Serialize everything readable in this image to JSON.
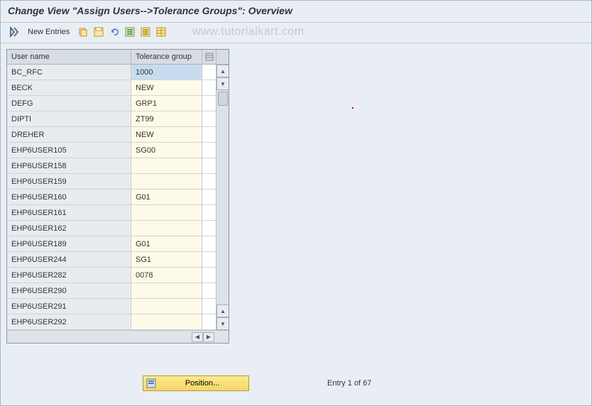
{
  "title": "Change View \"Assign Users-->Tolerance Groups\": Overview",
  "toolbar": {
    "new_entries": "New Entries"
  },
  "watermark": "www.tutorialkart.com",
  "table": {
    "columns": {
      "user": "User name",
      "group": "Tolerance group"
    },
    "rows": [
      {
        "user": "BC_RFC",
        "group": "1000",
        "selected": true
      },
      {
        "user": "BECK",
        "group": "NEW"
      },
      {
        "user": "DEFG",
        "group": "GRP1"
      },
      {
        "user": "DIPTI",
        "group": "ZT99"
      },
      {
        "user": "DREHER",
        "group": "NEW"
      },
      {
        "user": "EHP6USER105",
        "group": "SG00"
      },
      {
        "user": "EHP6USER158",
        "group": ""
      },
      {
        "user": "EHP6USER159",
        "group": ""
      },
      {
        "user": "EHP6USER160",
        "group": "G01"
      },
      {
        "user": "EHP6USER161",
        "group": ""
      },
      {
        "user": "EHP6USER162",
        "group": ""
      },
      {
        "user": "EHP6USER189",
        "group": "G01"
      },
      {
        "user": "EHP6USER244",
        "group": "SG1"
      },
      {
        "user": "EHP6USER282",
        "group": "0078"
      },
      {
        "user": "EHP6USER290",
        "group": ""
      },
      {
        "user": "EHP6USER291",
        "group": ""
      },
      {
        "user": "EHP6USER292",
        "group": ""
      }
    ]
  },
  "footer": {
    "position_label": "Position...",
    "entry_text": "Entry 1 of 67"
  },
  "colors": {
    "background": "#e8eef4",
    "header_bg": "#d8dde4",
    "user_cell_bg": "#e8ecf0",
    "group_cell_bg": "#fdfae8",
    "selected_bg": "#c8dcf0",
    "border": "#a8b8c8",
    "position_btn_bg": "#f5d767"
  },
  "icons": {
    "toggle": "toggle-icon",
    "copy": "copy-icon",
    "save": "save-icon",
    "undo": "undo-icon",
    "select_all": "select-all-icon",
    "delete": "delete-icon",
    "icon7": "spreadsheet-icon"
  }
}
